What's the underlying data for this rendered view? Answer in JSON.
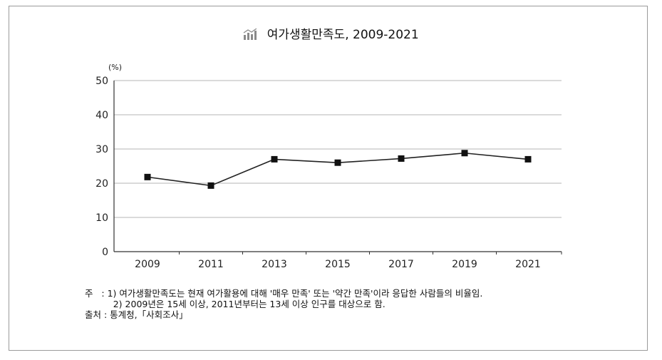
{
  "chart_data": {
    "type": "line",
    "title": "여가생활만족도, 2009-2021",
    "unit_label": "(%)",
    "x": [
      "2009",
      "2011",
      "2013",
      "2015",
      "2017",
      "2019",
      "2021"
    ],
    "series": [
      {
        "values": [
          21.8,
          19.3,
          27.0,
          26.0,
          27.2,
          28.8,
          27.0
        ]
      }
    ],
    "ylim": [
      0,
      50
    ],
    "yticks": [
      "0",
      "10",
      "20",
      "30",
      "40",
      "50"
    ],
    "grid": true
  },
  "notes": {
    "line1": "주   : 1) 여가생활만족도는 현재 여가활용에 대해 '매우 만족' 또는 '약간 만족'이라 응답한 사람들의 비율임.",
    "line2": "          2) 2009년은 15세 이상, 2011년부터는 13세 이상 인구를 대상으로 함.",
    "line3": "출처 : 통계청,「사회조사」"
  },
  "colors": {
    "line": "#222222",
    "grid": "#b5b5b5",
    "axis": "#333333"
  }
}
